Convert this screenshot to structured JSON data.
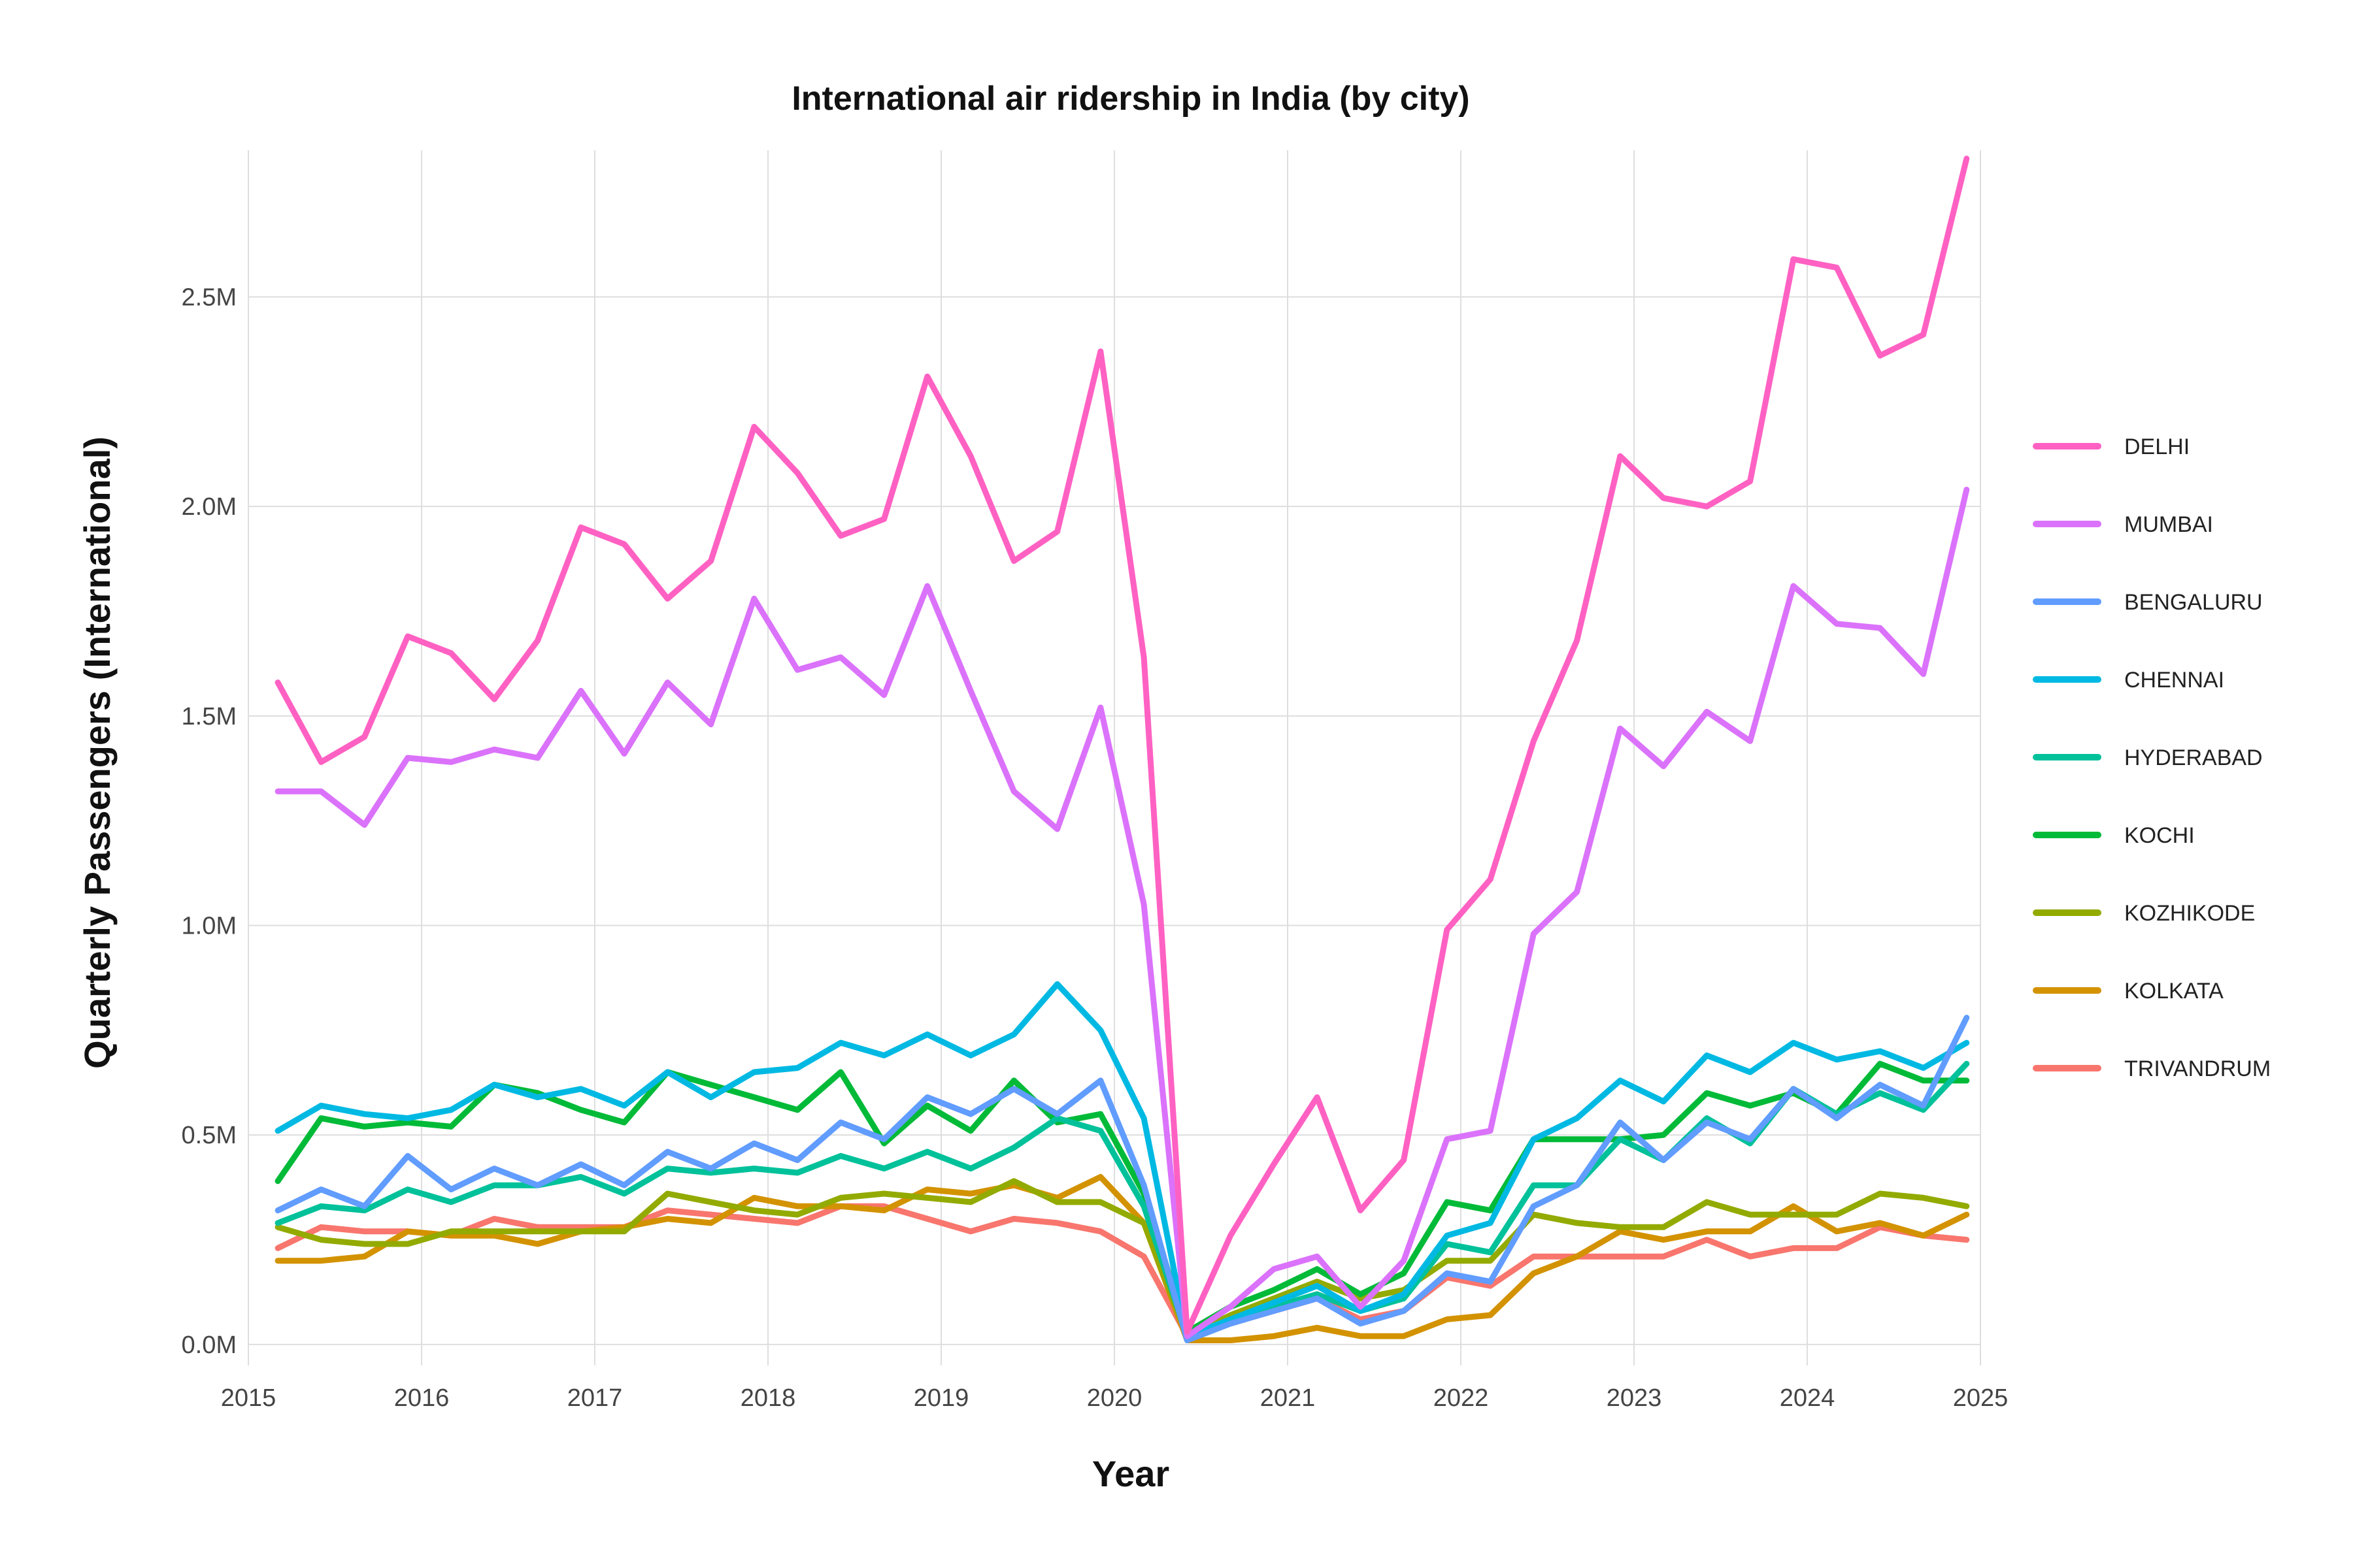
{
  "chart_data": {
    "type": "line",
    "title": "International air ridership in India (by city)",
    "xlabel": "Year",
    "ylabel": "Quarterly Passengers (International)",
    "x_ticks": [
      "2015",
      "2016",
      "2017",
      "2018",
      "2019",
      "2020",
      "2021",
      "2022",
      "2023",
      "2024",
      "2025"
    ],
    "y_ticks": [
      "0.0M",
      "0.5M",
      "1.0M",
      "1.5M",
      "2.0M",
      "2.5M"
    ],
    "y_tick_values": [
      0,
      0.5,
      1.0,
      1.5,
      2.0,
      2.5
    ],
    "xlim": [
      2015,
      2025
    ],
    "ylim": [
      -0.05,
      2.85
    ],
    "grid": true,
    "legend_position": "right",
    "x": [
      2015.17,
      2015.42,
      2015.67,
      2015.92,
      2016.17,
      2016.42,
      2016.67,
      2016.92,
      2017.17,
      2017.42,
      2017.67,
      2017.92,
      2018.17,
      2018.42,
      2018.67,
      2018.92,
      2019.17,
      2019.42,
      2019.67,
      2019.92,
      2020.17,
      2020.42,
      2020.67,
      2020.92,
      2021.17,
      2021.42,
      2021.67,
      2021.92,
      2022.17,
      2022.42,
      2022.67,
      2022.92,
      2023.17,
      2023.42,
      2023.67,
      2023.92,
      2024.17,
      2024.42,
      2024.67,
      2024.92
    ],
    "series": [
      {
        "name": "DELHI",
        "color": "#FF61C3",
        "values": [
          1.58,
          1.39,
          1.45,
          1.69,
          1.65,
          1.54,
          1.68,
          1.95,
          1.91,
          1.78,
          1.87,
          2.19,
          2.08,
          1.93,
          1.97,
          2.31,
          2.12,
          1.87,
          1.94,
          2.37,
          1.64,
          0.03,
          0.26,
          0.43,
          0.59,
          0.32,
          0.44,
          0.99,
          1.11,
          1.44,
          1.68,
          2.12,
          2.02,
          2.0,
          2.06,
          2.59,
          2.57,
          2.36,
          2.41,
          2.83
        ]
      },
      {
        "name": "MUMBAI",
        "color": "#DB72FB",
        "values": [
          1.32,
          1.32,
          1.24,
          1.4,
          1.39,
          1.42,
          1.4,
          1.56,
          1.41,
          1.58,
          1.48,
          1.78,
          1.61,
          1.64,
          1.55,
          1.81,
          1.56,
          1.32,
          1.23,
          1.52,
          1.05,
          0.02,
          0.09,
          0.18,
          0.21,
          0.09,
          0.2,
          0.49,
          0.51,
          0.98,
          1.08,
          1.47,
          1.38,
          1.51,
          1.44,
          1.81,
          1.72,
          1.71,
          1.6,
          2.04
        ]
      },
      {
        "name": "BENGALURU",
        "color": "#619CFF",
        "values": [
          0.32,
          0.37,
          0.33,
          0.45,
          0.37,
          0.42,
          0.38,
          0.43,
          0.38,
          0.46,
          0.42,
          0.48,
          0.44,
          0.53,
          0.49,
          0.59,
          0.55,
          0.61,
          0.55,
          0.63,
          0.38,
          0.01,
          0.05,
          0.08,
          0.11,
          0.05,
          0.08,
          0.17,
          0.15,
          0.33,
          0.38,
          0.53,
          0.44,
          0.53,
          0.49,
          0.61,
          0.54,
          0.62,
          0.57,
          0.78
        ]
      },
      {
        "name": "CHENNAI",
        "color": "#00B9E3",
        "values": [
          0.51,
          0.57,
          0.55,
          0.54,
          0.56,
          0.62,
          0.59,
          0.61,
          0.57,
          0.65,
          0.59,
          0.65,
          0.66,
          0.72,
          0.69,
          0.74,
          0.69,
          0.74,
          0.86,
          0.75,
          0.54,
          0.02,
          0.06,
          0.1,
          0.14,
          0.08,
          0.12,
          0.26,
          0.29,
          0.49,
          0.54,
          0.63,
          0.58,
          0.69,
          0.65,
          0.72,
          0.68,
          0.7,
          0.66,
          0.72
        ]
      },
      {
        "name": "HYDERABAD",
        "color": "#00C19A",
        "values": [
          0.29,
          0.33,
          0.32,
          0.37,
          0.34,
          0.38,
          0.38,
          0.4,
          0.36,
          0.42,
          0.41,
          0.42,
          0.41,
          0.45,
          0.42,
          0.46,
          0.42,
          0.47,
          0.54,
          0.51,
          0.33,
          0.02,
          0.06,
          0.09,
          0.12,
          0.08,
          0.11,
          0.24,
          0.22,
          0.38,
          0.38,
          0.49,
          0.44,
          0.54,
          0.48,
          0.61,
          0.55,
          0.6,
          0.56,
          0.67
        ]
      },
      {
        "name": "KOCHI",
        "color": "#00BA38",
        "values": [
          0.39,
          0.54,
          0.52,
          0.53,
          0.52,
          0.62,
          0.6,
          0.56,
          0.53,
          0.65,
          0.62,
          0.59,
          0.56,
          0.65,
          0.48,
          0.57,
          0.51,
          0.63,
          0.53,
          0.55,
          0.36,
          0.03,
          0.09,
          0.13,
          0.18,
          0.12,
          0.17,
          0.34,
          0.32,
          0.49,
          0.49,
          0.49,
          0.5,
          0.6,
          0.57,
          0.6,
          0.55,
          0.67,
          0.63,
          0.63
        ]
      },
      {
        "name": "KOZHIKODE",
        "color": "#93AA00",
        "values": [
          0.28,
          0.25,
          0.24,
          0.24,
          0.27,
          0.27,
          0.27,
          0.27,
          0.27,
          0.36,
          0.34,
          0.32,
          0.31,
          0.35,
          0.36,
          0.35,
          0.34,
          0.39,
          0.34,
          0.34,
          0.29,
          0.02,
          0.07,
          0.11,
          0.15,
          0.11,
          0.13,
          0.2,
          0.2,
          0.31,
          0.29,
          0.28,
          0.28,
          0.34,
          0.31,
          0.31,
          0.31,
          0.36,
          0.35,
          0.33
        ]
      },
      {
        "name": "KOLKATA",
        "color": "#D39200",
        "values": [
          0.2,
          0.2,
          0.21,
          0.27,
          0.26,
          0.26,
          0.24,
          0.27,
          0.28,
          0.3,
          0.29,
          0.35,
          0.33,
          0.33,
          0.32,
          0.37,
          0.36,
          0.38,
          0.35,
          0.4,
          0.29,
          0.01,
          0.01,
          0.02,
          0.04,
          0.02,
          0.02,
          0.06,
          0.07,
          0.17,
          0.21,
          0.27,
          0.25,
          0.27,
          0.27,
          0.33,
          0.27,
          0.29,
          0.26,
          0.31
        ]
      },
      {
        "name": "TRIVANDRUM",
        "color": "#F8766D",
        "values": [
          0.23,
          0.28,
          0.27,
          0.27,
          0.26,
          0.3,
          0.28,
          0.28,
          0.28,
          0.32,
          0.31,
          0.3,
          0.29,
          0.33,
          0.33,
          0.3,
          0.27,
          0.3,
          0.29,
          0.27,
          0.21,
          0.02,
          0.05,
          0.08,
          0.11,
          0.06,
          0.08,
          0.16,
          0.14,
          0.21,
          0.21,
          0.21,
          0.21,
          0.25,
          0.21,
          0.23,
          0.23,
          0.28,
          0.26,
          0.25
        ]
      }
    ]
  }
}
